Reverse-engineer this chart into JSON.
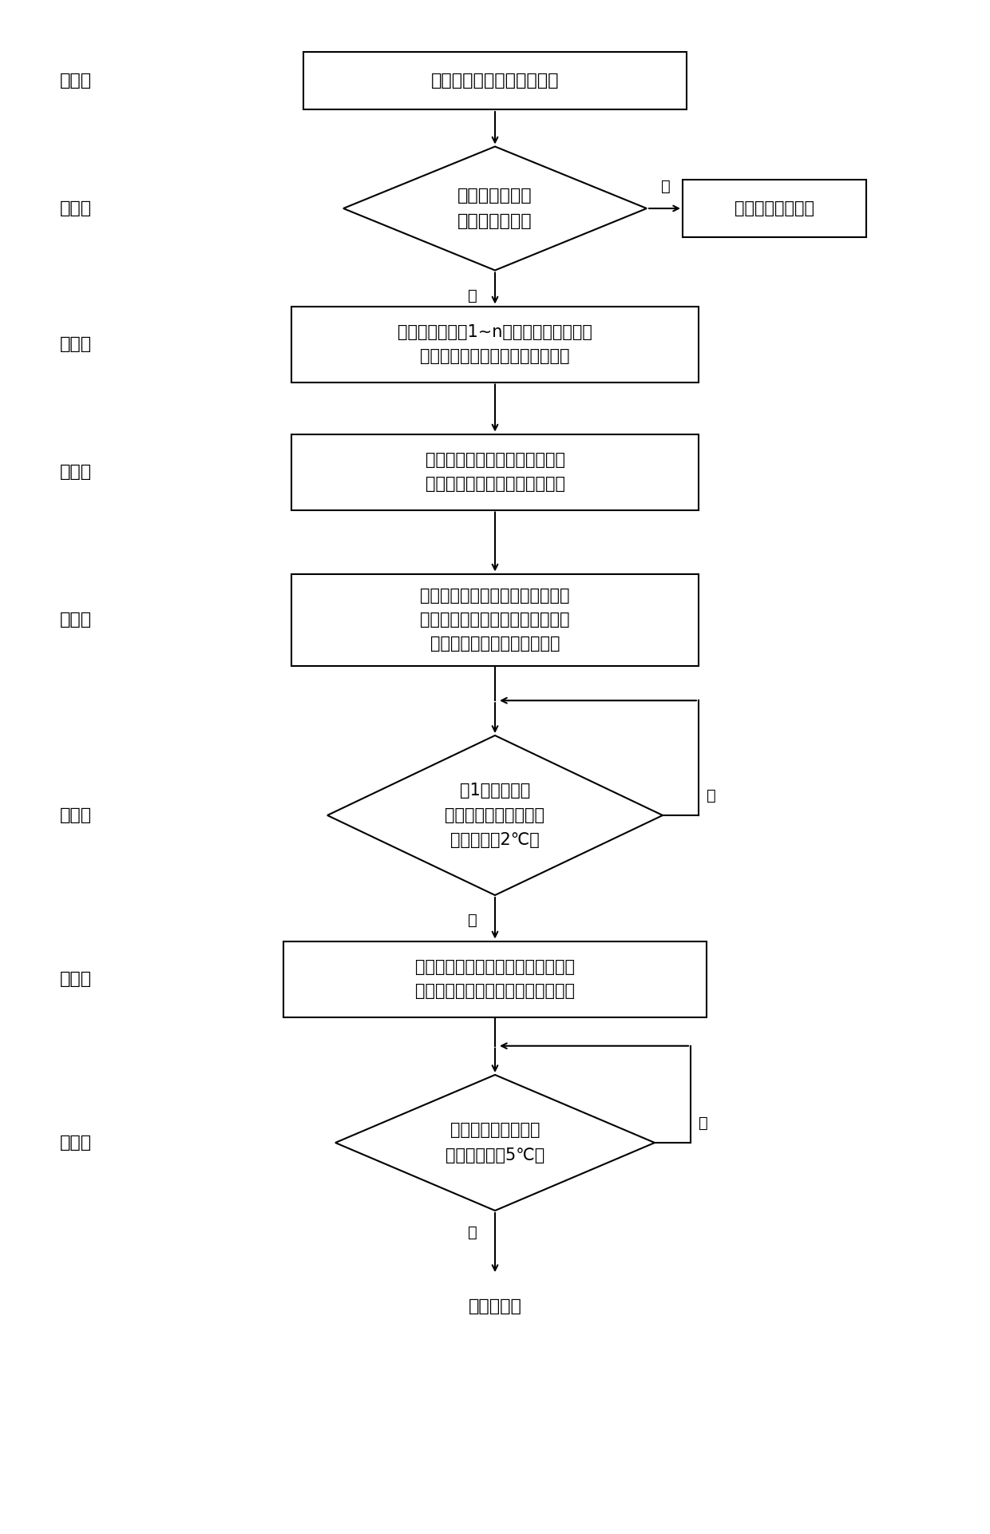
{
  "bg_color": "#ffffff",
  "s1_label": "空调机组上电，读取存储器",
  "s2_label": "室内机与室外机\n压缩机已匹配？",
  "s2b_label": "进入正常运行程序",
  "s3_label": "搜索地址范围为1~n室内机，记录有正确\n反馈数据的室内机为已连接室内机",
  "s4_label": "广播发送进入运行匹配程序命令\n给各室内机，进入运行匹配状态",
  "s5_label": "通过广播发送命令给各室内机，使\n得各室内机进入制冷模式，并开启\n室内风机，但是压缩机不启动",
  "s6_label": "在1分钟内每个\n室内机盘管温度的变化\n范围都小于2℃？",
  "s7_label": "室外机只开启一个压缩机，通过读操\n作读取各个室内机的室内机盘管温度",
  "s8_label": "是否有室内机盘管温\n度降低超过了5℃？",
  "step_labels": [
    "第一步",
    "第二步",
    "第三步",
    "第四步",
    "第五步",
    "第六步",
    "第七步",
    "第八步"
  ],
  "yes_label": "是",
  "no_label": "否",
  "bottom_label": "下接第九步",
  "lw": 1.5,
  "arrow_ms": 12
}
